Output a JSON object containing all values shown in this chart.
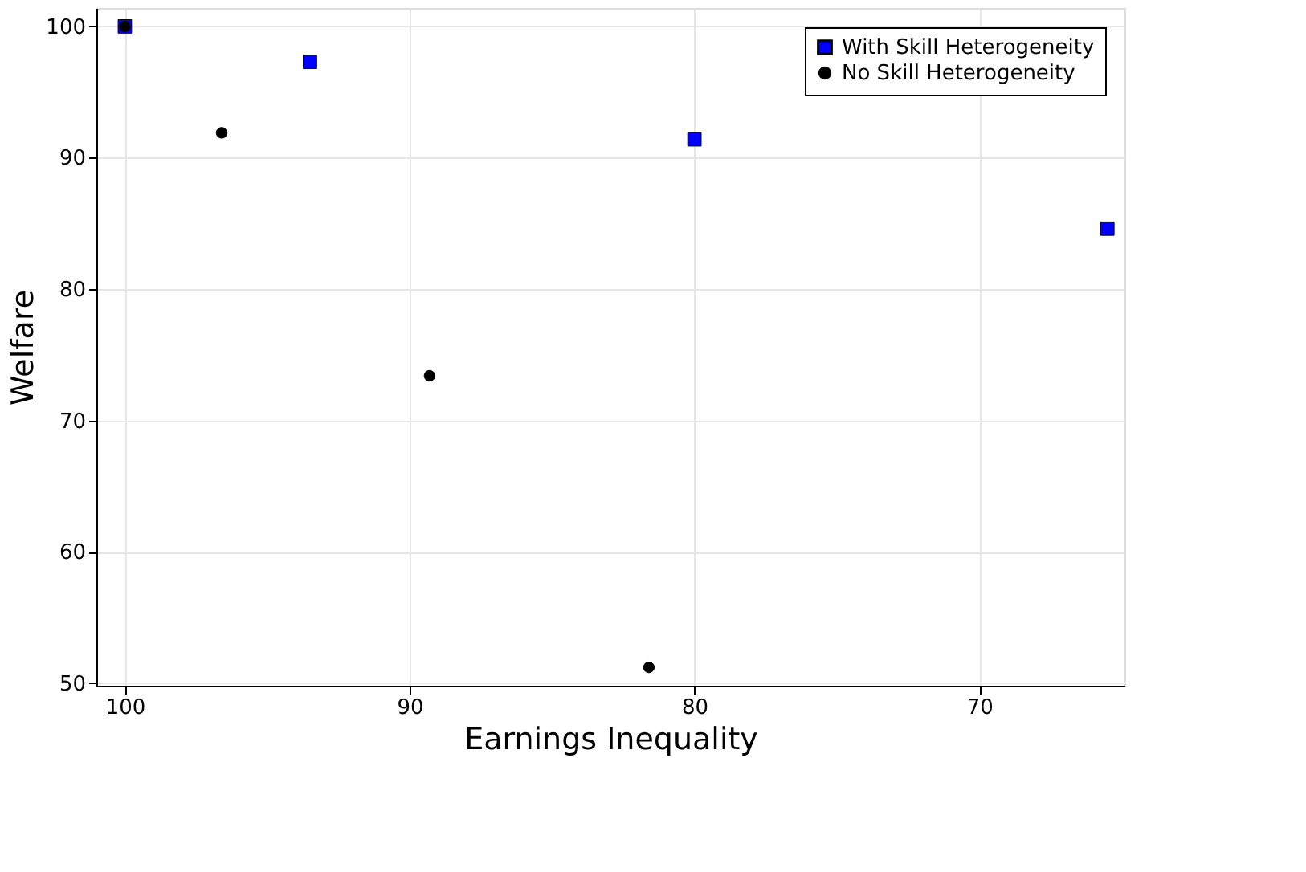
{
  "chart_data": {
    "type": "scatter",
    "xlabel": "Earnings Inequality",
    "ylabel": "Welfare",
    "xlim": [
      101,
      64.9
    ],
    "ylim": [
      49.8,
      101.4
    ],
    "xticks": [
      100,
      90,
      80,
      70
    ],
    "yticks": [
      50,
      60,
      70,
      80,
      90,
      100
    ],
    "grid": true,
    "legend": "top right",
    "series": [
      {
        "name": "With Skill Heterogeneity",
        "color": "#0000ff",
        "marker": "square",
        "x": [
          100,
          93.5,
          80,
          65.5
        ],
        "values": [
          100,
          97.3,
          91.4,
          84.6
        ]
      },
      {
        "name": "No Skill Heterogeneity",
        "color": "#000000",
        "marker": "circle",
        "x": [
          100,
          96.6,
          89.3,
          81.6
        ],
        "values": [
          100,
          91.9,
          73.4,
          51.2
        ]
      }
    ]
  }
}
